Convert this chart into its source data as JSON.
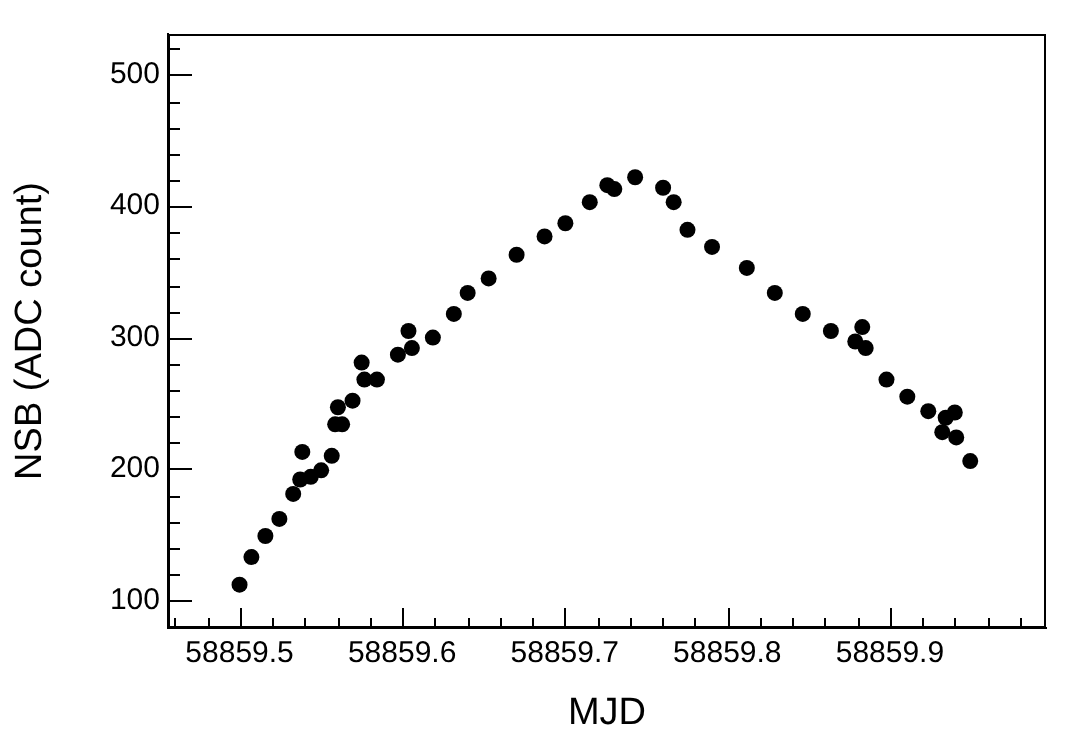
{
  "chart_data": {
    "type": "scatter",
    "xlabel": "MJD",
    "ylabel": "NSB (ADC count)",
    "marker": "circle",
    "grid": false,
    "xlim": [
      58859.456,
      58859.996
    ],
    "ylim": [
      79,
      531
    ],
    "xticks": [
      {
        "value": 58859.46,
        "label": null
      },
      {
        "value": 58859.48,
        "label": null
      },
      58859.5,
      {
        "value": 58859.52,
        "label": null
      },
      {
        "value": 58859.54,
        "label": null
      },
      {
        "value": 58859.56,
        "label": null
      },
      {
        "value": 58859.58,
        "label": null
      },
      58859.6,
      {
        "value": 58859.62,
        "label": null
      },
      {
        "value": 58859.64,
        "label": null
      },
      {
        "value": 58859.66,
        "label": null
      },
      {
        "value": 58859.68,
        "label": null
      },
      58859.7,
      {
        "value": 58859.72,
        "label": null
      },
      {
        "value": 58859.74,
        "label": null
      },
      {
        "value": 58859.76,
        "label": null
      },
      {
        "value": 58859.78,
        "label": null
      },
      58859.8,
      {
        "value": 58859.82,
        "label": null
      },
      {
        "value": 58859.84,
        "label": null
      },
      {
        "value": 58859.86,
        "label": null
      },
      {
        "value": 58859.88,
        "label": null
      },
      58859.9,
      {
        "value": 58859.92,
        "label": null
      },
      {
        "value": 58859.94,
        "label": null
      },
      {
        "value": 58859.96,
        "label": null
      },
      {
        "value": 58859.98,
        "label": null
      }
    ],
    "yticks": [
      100,
      {
        "value": 120,
        "label": null
      },
      {
        "value": 140,
        "label": null
      },
      {
        "value": 160,
        "label": null
      },
      {
        "value": 180,
        "label": null
      },
      200,
      {
        "value": 220,
        "label": null
      },
      {
        "value": 240,
        "label": null
      },
      {
        "value": 260,
        "label": null
      },
      {
        "value": 280,
        "label": null
      },
      300,
      {
        "value": 320,
        "label": null
      },
      {
        "value": 340,
        "label": null
      },
      {
        "value": 360,
        "label": null
      },
      {
        "value": 380,
        "label": null
      },
      400,
      {
        "value": 420,
        "label": null
      },
      {
        "value": 440,
        "label": null
      },
      {
        "value": 460,
        "label": null
      },
      {
        "value": 480,
        "label": null
      },
      500,
      {
        "value": 520,
        "label": null
      }
    ],
    "series": [
      {
        "color": "#000000",
        "x": [
          58859.5,
          58859.5073,
          58859.5159,
          58859.5245,
          58859.533,
          58859.5373,
          58859.5386,
          58859.5438,
          58859.5502,
          58859.5567,
          58859.5588,
          58859.5605,
          58859.5631,
          58859.5695,
          58859.5751,
          58859.5768,
          58859.5845,
          58859.5974,
          58859.6039,
          58859.606,
          58859.6189,
          58859.6318,
          58859.6403,
          58859.6532,
          58859.6704,
          58859.6876,
          58859.7004,
          58859.7154,
          58859.7262,
          58859.7305,
          58859.7433,
          58859.7605,
          58859.767,
          58859.7755,
          58859.7906,
          58859.812,
          58859.8292,
          58859.8464,
          58859.8637,
          58859.8787,
          58859.883,
          58859.8851,
          58859.8979,
          58859.9107,
          58859.9236,
          58859.9322,
          58859.9343,
          58859.9399,
          58859.9408,
          58859.9494
        ],
        "values": [
          112,
          133,
          149,
          162,
          181,
          192,
          213,
          194,
          199,
          210,
          234,
          247,
          234,
          252,
          281,
          268,
          268,
          287,
          305,
          292,
          300,
          318,
          334,
          345,
          363,
          377,
          387,
          403,
          416,
          413,
          422,
          414,
          403,
          382,
          369,
          353,
          334,
          318,
          305,
          297,
          308,
          292,
          268,
          255,
          244,
          228,
          239,
          243,
          224,
          206
        ]
      }
    ]
  }
}
